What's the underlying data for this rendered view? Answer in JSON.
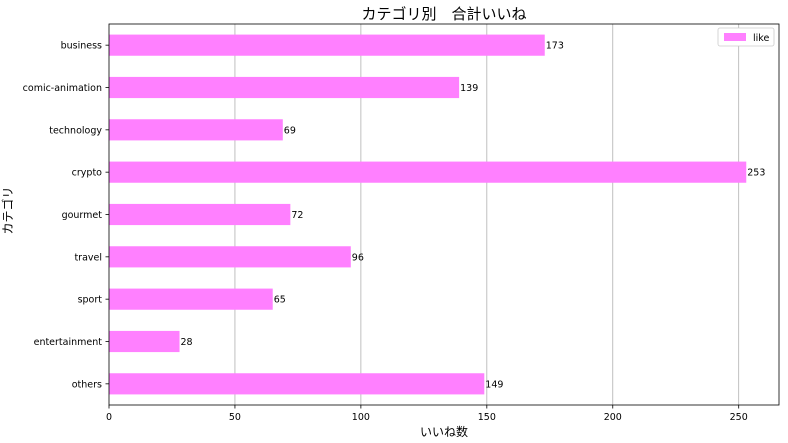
{
  "chart_data": {
    "type": "bar",
    "orientation": "horizontal",
    "title": "カテゴリ別　合計いいね",
    "xlabel": "いいね数",
    "ylabel": "カテゴリ",
    "categories": [
      "business",
      "comic-animation",
      "technology",
      "crypto",
      "gourmet",
      "travel",
      "sport",
      "entertainment",
      "others"
    ],
    "series": [
      {
        "name": "like",
        "values": [
          173,
          139,
          69,
          253,
          72,
          96,
          65,
          28,
          149
        ],
        "color": "#ff80ff"
      }
    ],
    "xlim": [
      0,
      266
    ],
    "xticks": [
      0,
      50,
      100,
      150,
      200,
      250
    ],
    "grid": "vertical",
    "legend_position": "top-right",
    "data_labels": true
  }
}
